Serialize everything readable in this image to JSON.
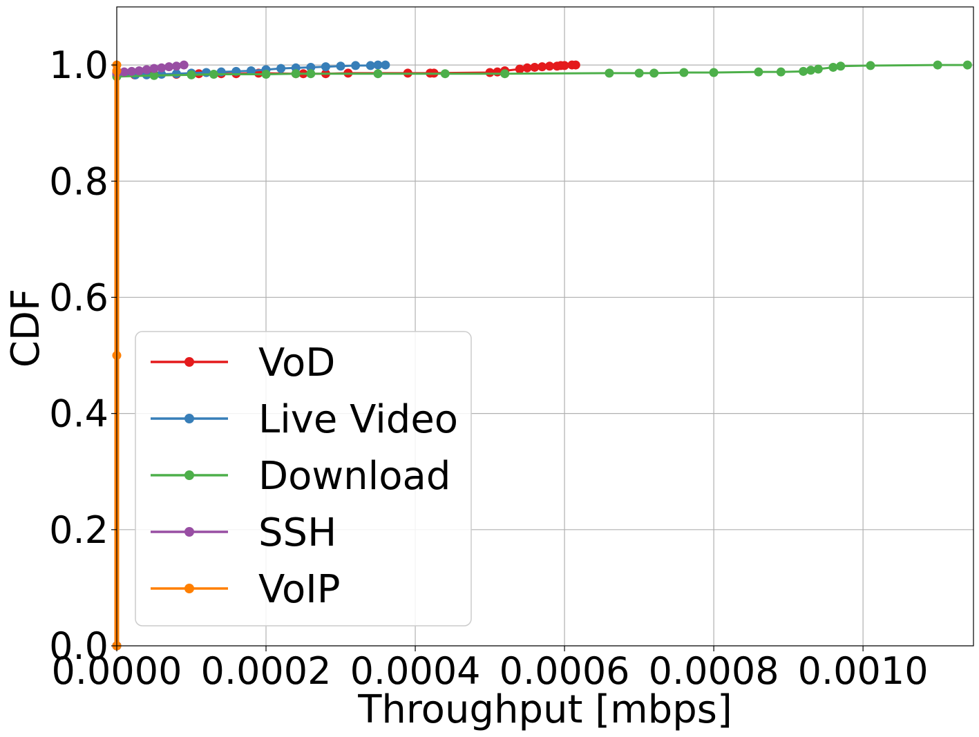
{
  "chart_data": {
    "type": "line",
    "xlabel": "Throughput [mbps]",
    "ylabel": "CDF",
    "xlim": [
      0.0,
      0.001148
    ],
    "ylim": [
      0.0,
      1.1
    ],
    "xticks": [
      0.0,
      0.0002,
      0.0004,
      0.0006,
      0.0008,
      0.001
    ],
    "xtick_labels": [
      "0.0000",
      "0.0002",
      "0.0004",
      "0.0006",
      "0.0008",
      "0.0010"
    ],
    "yticks": [
      0.0,
      0.2,
      0.4,
      0.6,
      0.8,
      1.0
    ],
    "ytick_labels": [
      "0.0",
      "0.2",
      "0.4",
      "0.6",
      "0.8",
      "1.0"
    ],
    "grid": true,
    "legend_position": "lower-left",
    "series": [
      {
        "name": "VoD",
        "color": "#e41a1c",
        "x": [
          0.0,
          0.0,
          2.4e-05,
          5e-05,
          8e-05,
          0.00011,
          0.00014,
          0.00016,
          0.00019,
          0.00024,
          0.00025,
          0.00028,
          0.00031,
          0.00039,
          0.00042,
          0.000425,
          0.0005,
          0.00051,
          0.00052,
          0.00054,
          0.00055,
          0.00056,
          0.00057,
          0.00058,
          0.00059,
          0.000595,
          0.0006,
          0.00061,
          0.000615
        ],
        "y": [
          0.0,
          0.985,
          0.983,
          0.984,
          0.984,
          0.985,
          0.985,
          0.985,
          0.986,
          0.985,
          0.985,
          0.985,
          0.986,
          0.986,
          0.986,
          0.986,
          0.987,
          0.988,
          0.99,
          0.993,
          0.995,
          0.996,
          0.997,
          0.998,
          0.998,
          0.999,
          0.999,
          1.0,
          1.0
        ]
      },
      {
        "name": "Live Video",
        "color": "#377eb8",
        "x": [
          0.0,
          0.0,
          2.5e-05,
          4e-05,
          6e-05,
          8e-05,
          0.0001,
          0.00012,
          0.00014,
          0.00016,
          0.00018,
          0.0002,
          0.00022,
          0.00024,
          0.00026,
          0.00028,
          0.0003,
          0.00032,
          0.00034,
          0.00035,
          0.00036
        ],
        "y": [
          0.0,
          0.983,
          0.983,
          0.983,
          0.984,
          0.985,
          0.986,
          0.987,
          0.988,
          0.989,
          0.99,
          0.992,
          0.994,
          0.995,
          0.996,
          0.997,
          0.998,
          0.999,
          0.999,
          1.0,
          1.0
        ]
      },
      {
        "name": "Download",
        "color": "#4daf4a",
        "x": [
          0.0,
          0.0,
          5e-05,
          0.0001,
          0.00013,
          0.0002,
          0.00024,
          0.00026,
          0.00035,
          0.00044,
          0.00052,
          0.00066,
          0.0007,
          0.00072,
          0.00076,
          0.0008,
          0.00086,
          0.00089,
          0.00092,
          0.00093,
          0.00094,
          0.00096,
          0.00097,
          0.00101,
          0.0011,
          0.00114
        ],
        "y": [
          0.0,
          0.98,
          0.982,
          0.983,
          0.984,
          0.984,
          0.985,
          0.985,
          0.985,
          0.985,
          0.985,
          0.986,
          0.986,
          0.986,
          0.987,
          0.987,
          0.988,
          0.988,
          0.989,
          0.991,
          0.993,
          0.996,
          0.998,
          0.999,
          1.0,
          1.0
        ]
      },
      {
        "name": "SSH",
        "color": "#984ea3",
        "x": [
          0.0,
          0.0,
          1e-05,
          2e-05,
          3e-05,
          4e-05,
          5e-05,
          6e-05,
          7e-05,
          8e-05,
          9e-05
        ],
        "y": [
          0.0,
          0.986,
          0.988,
          0.989,
          0.99,
          0.992,
          0.994,
          0.995,
          0.997,
          0.998,
          1.0
        ]
      },
      {
        "name": "VoIP",
        "color": "#ff7f00",
        "x": [
          0.0,
          0.0,
          0.0,
          0.0
        ],
        "y": [
          0.0,
          0.5,
          0.99,
          1.0
        ]
      }
    ]
  }
}
